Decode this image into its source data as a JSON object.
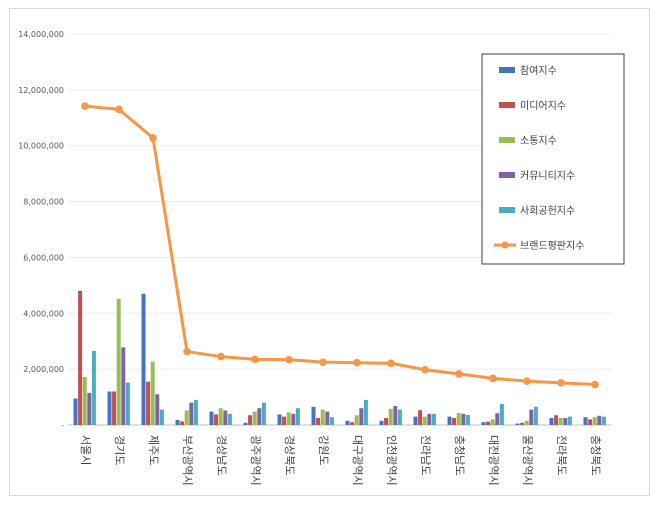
{
  "chart_data": {
    "type": "bar",
    "categories": [
      "서울시",
      "경기도",
      "제주도",
      "부산광역시",
      "경상남도",
      "광주광역시",
      "경상북도",
      "강원도",
      "대구광역시",
      "인천광역시",
      "전라남도",
      "충청남도",
      "대전광역시",
      "울산광역시",
      "전라북도",
      "충청북도"
    ],
    "ylim": [
      0,
      14000000
    ],
    "yticks": [
      "-",
      "2,000,000",
      "4,000,000",
      "6,000,000",
      "8,000,000",
      "10,000,000",
      "12,000,000",
      "14,000,000"
    ],
    "series": [
      {
        "name": "참여지수",
        "color": "#4472c4",
        "values": [
          950000,
          1200000,
          4700000,
          180000,
          480000,
          80000,
          380000,
          650000,
          150000,
          150000,
          300000,
          300000,
          100000,
          50000,
          250000,
          280000
        ]
      },
      {
        "name": "미디어지수",
        "color": "#c0504d",
        "values": [
          4800000,
          1200000,
          1550000,
          130000,
          380000,
          350000,
          300000,
          250000,
          100000,
          250000,
          530000,
          250000,
          120000,
          80000,
          350000,
          200000
        ]
      },
      {
        "name": "소통지수",
        "color": "#9bbb59",
        "values": [
          1720000,
          4520000,
          2270000,
          520000,
          600000,
          480000,
          450000,
          550000,
          350000,
          580000,
          300000,
          430000,
          200000,
          150000,
          250000,
          280000
        ]
      },
      {
        "name": "커뮤니티지수",
        "color": "#8064a2",
        "values": [
          1150000,
          2780000,
          1100000,
          800000,
          520000,
          600000,
          400000,
          480000,
          600000,
          680000,
          400000,
          400000,
          420000,
          550000,
          250000,
          330000
        ]
      },
      {
        "name": "사회공헌지수",
        "color": "#4bacc6",
        "values": [
          2650000,
          1520000,
          550000,
          900000,
          400000,
          800000,
          600000,
          280000,
          900000,
          550000,
          400000,
          360000,
          750000,
          650000,
          300000,
          300000
        ]
      }
    ],
    "line": {
      "name": "브랜드평판지수",
      "color": "#f79646",
      "values": [
        11420000,
        11300000,
        10280000,
        2630000,
        2450000,
        2350000,
        2340000,
        2250000,
        2230000,
        2210000,
        1980000,
        1830000,
        1670000,
        1570000,
        1510000,
        1450000
      ]
    }
  }
}
